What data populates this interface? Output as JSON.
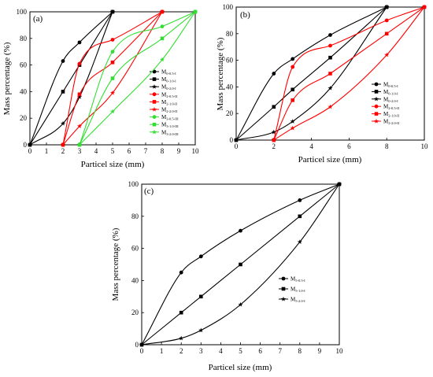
{
  "chart_data": [
    {
      "type": "line",
      "panel_label": "(a)",
      "xlabel": "Particel size (mm)",
      "ylabel": "Mass percentage (%)",
      "xlim": [
        0,
        10
      ],
      "ylim": [
        0,
        100
      ],
      "xticks": [
        0,
        1,
        2,
        3,
        4,
        5,
        6,
        7,
        8,
        9,
        10
      ],
      "yticks": [
        0,
        20,
        40,
        60,
        80,
        100
      ],
      "legend_position": "bottom-right",
      "series": [
        {
          "name": "M",
          "sub": "0-0.5-I",
          "color": "#000000",
          "marker": "circle",
          "x": [
            0,
            2,
            3,
            5
          ],
          "y": [
            0,
            63,
            77,
            100
          ]
        },
        {
          "name": "M",
          "sub": "0-1.0-I",
          "color": "#000000",
          "marker": "square",
          "x": [
            0,
            2,
            3,
            5
          ],
          "y": [
            0,
            40,
            60,
            100
          ]
        },
        {
          "name": "M",
          "sub": "0-2.0-I",
          "color": "#000000",
          "marker": "star",
          "x": [
            0,
            2,
            3,
            5
          ],
          "y": [
            0,
            16,
            36,
            100
          ]
        },
        {
          "name": "M",
          "sub": "2-0.5-II",
          "color": "#ff0000",
          "marker": "circle",
          "x": [
            2,
            3,
            5,
            8
          ],
          "y": [
            0,
            61,
            79,
            100
          ]
        },
        {
          "name": "M",
          "sub": "2-1.0-II",
          "color": "#ff0000",
          "marker": "square",
          "x": [
            2,
            3,
            5,
            8
          ],
          "y": [
            0,
            38,
            62,
            100
          ]
        },
        {
          "name": "M",
          "sub": "2-2.0-II",
          "color": "#ff0000",
          "marker": "star",
          "x": [
            2,
            3,
            5,
            8
          ],
          "y": [
            0,
            14,
            39,
            100
          ]
        },
        {
          "name": "M",
          "sub": "3-0.5-III",
          "color": "#33dd33",
          "marker": "circle",
          "x": [
            3,
            5,
            8,
            10
          ],
          "y": [
            0,
            70,
            89,
            100
          ]
        },
        {
          "name": "M",
          "sub": "3-1.0-III",
          "color": "#33dd33",
          "marker": "square",
          "x": [
            3,
            5,
            8,
            10
          ],
          "y": [
            0,
            50,
            80,
            100
          ]
        },
        {
          "name": "M",
          "sub": "3-2.0-III",
          "color": "#33dd33",
          "marker": "star",
          "x": [
            3,
            5,
            8,
            10
          ],
          "y": [
            0,
            25,
            64,
            100
          ]
        }
      ]
    },
    {
      "type": "line",
      "panel_label": "(b)",
      "xlabel": "Particel size (mm)",
      "ylabel": "Mass percentage (%)",
      "xlim": [
        0,
        10
      ],
      "ylim": [
        0,
        100
      ],
      "xticks": [
        0,
        2,
        4,
        6,
        8,
        10
      ],
      "yticks": [
        0,
        20,
        40,
        60,
        80,
        100
      ],
      "legend_position": "bottom-right",
      "series": [
        {
          "name": "M",
          "sub": "0-0.5-I",
          "color": "#000000",
          "marker": "circle",
          "x": [
            0,
            2,
            3,
            5,
            8
          ],
          "y": [
            0,
            50,
            61,
            79,
            100
          ]
        },
        {
          "name": "M",
          "sub": "0-1.0-I",
          "color": "#000000",
          "marker": "square",
          "x": [
            0,
            2,
            3,
            5,
            8
          ],
          "y": [
            0,
            25,
            38,
            62,
            100
          ]
        },
        {
          "name": "M",
          "sub": "0-2.0-I",
          "color": "#000000",
          "marker": "star",
          "x": [
            0,
            2,
            3,
            5,
            8
          ],
          "y": [
            0,
            6,
            14,
            39,
            100
          ]
        },
        {
          "name": "M",
          "sub": "2-0.5-II",
          "color": "#ff0000",
          "marker": "circle",
          "x": [
            2,
            3,
            5,
            8,
            10
          ],
          "y": [
            0,
            55,
            71,
            90,
            100
          ]
        },
        {
          "name": "M",
          "sub": "2-1.0-II",
          "color": "#ff0000",
          "marker": "square",
          "x": [
            2,
            3,
            5,
            8,
            10
          ],
          "y": [
            0,
            30,
            50,
            80,
            100
          ]
        },
        {
          "name": "M",
          "sub": "2-2.0-II",
          "color": "#ff0000",
          "marker": "star",
          "x": [
            2,
            3,
            5,
            8,
            10
          ],
          "y": [
            0,
            9,
            25,
            64,
            100
          ]
        }
      ]
    },
    {
      "type": "line",
      "panel_label": "(c)",
      "xlabel": "Particel size (mm)",
      "ylabel": "Mass percentage (%)",
      "xlim": [
        0,
        10
      ],
      "ylim": [
        0,
        100
      ],
      "xticks": [
        0,
        1,
        2,
        3,
        4,
        5,
        6,
        7,
        8,
        9,
        10
      ],
      "yticks": [
        0,
        20,
        40,
        60,
        80,
        100
      ],
      "legend_position": "center-left",
      "series": [
        {
          "name": "M",
          "sub": "5-0.5-I",
          "color": "#000000",
          "marker": "circle",
          "x": [
            0,
            2,
            3,
            5,
            8,
            10
          ],
          "y": [
            0,
            45,
            55,
            71,
            90,
            100
          ]
        },
        {
          "name": "M",
          "sub": "5-1.0-I",
          "color": "#000000",
          "marker": "square",
          "x": [
            0,
            2,
            3,
            5,
            8,
            10
          ],
          "y": [
            0,
            20,
            30,
            50,
            80,
            100
          ]
        },
        {
          "name": "M",
          "sub": "5-2.0-I",
          "color": "#000000",
          "marker": "star",
          "x": [
            0,
            2,
            3,
            5,
            8,
            10
          ],
          "y": [
            0,
            4,
            9,
            25,
            64,
            100
          ]
        }
      ]
    }
  ]
}
